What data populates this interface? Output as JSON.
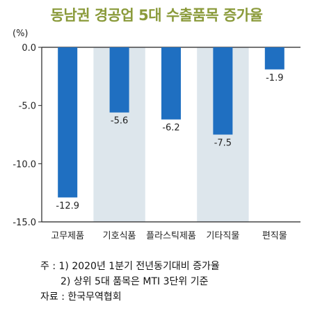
{
  "title": "동남권 경공업 5대 수출품목 증가율",
  "colors": {
    "title": "#8a9a3a",
    "bar": "#1f6fc1",
    "band": "#dde6ec",
    "axis": "#222222"
  },
  "chart_data": {
    "type": "bar",
    "title": "동남권 경공업 5대 수출품목 증가율",
    "ylabel": "(%)",
    "xlabel": "",
    "ylim": [
      -15.0,
      0.0
    ],
    "yticks": [
      0.0,
      -5.0,
      -10.0,
      -15.0
    ],
    "ytick_labels": [
      "0.0",
      "-5.0",
      "-10.0",
      "-15.0"
    ],
    "categories": [
      "고무제품",
      "기호식품",
      "플라스틱제품",
      "기타직물",
      "편직물"
    ],
    "values": [
      -12.9,
      -5.6,
      -6.2,
      -7.5,
      -1.9
    ],
    "data_labels": [
      "-12.9",
      "-5.6",
      "-6.2",
      "-7.5",
      "-1.9"
    ],
    "grid": false,
    "legend": "none"
  },
  "notes": {
    "line1_prefix": "주 : 1)",
    "line1_text": "2020년 1분기 전년동기대비 증가율",
    "line2_prefix": "2)",
    "line2_text": "상위 5대 품목은 MTI 3단위 기준",
    "line3": "자료 : 한국무역협회"
  }
}
